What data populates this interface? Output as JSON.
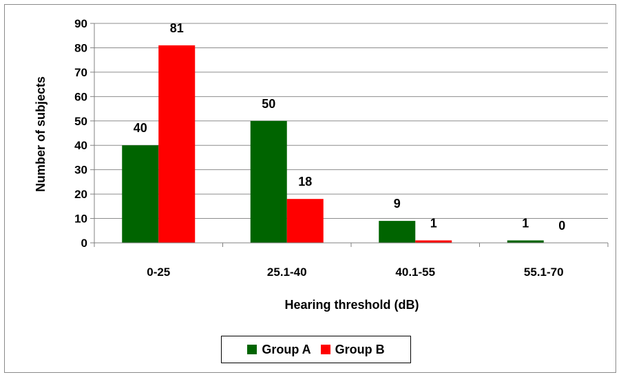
{
  "chart_data": {
    "type": "bar",
    "title": "",
    "xlabel": "Hearing threshold (dB)",
    "ylabel": "Number of subjects",
    "categories": [
      "0-25",
      "25.1-40",
      "40.1-55",
      "55.1-70"
    ],
    "series": [
      {
        "name": "Group A",
        "color": "#006400",
        "values": [
          40,
          50,
          9,
          1
        ]
      },
      {
        "name": "Group B",
        "color": "#ff0000",
        "values": [
          81,
          18,
          1,
          0
        ]
      }
    ],
    "ylim": [
      0,
      90
    ],
    "yticks": [
      "0",
      "10",
      "20",
      "30",
      "40",
      "50",
      "60",
      "70",
      "80",
      "90"
    ],
    "grid": true,
    "legend_position": "bottom"
  }
}
